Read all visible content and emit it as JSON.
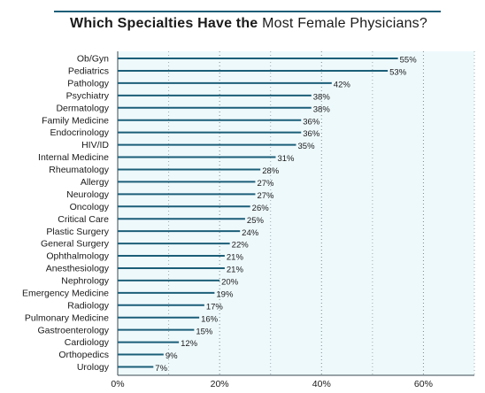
{
  "chart_data": {
    "type": "bar",
    "orientation": "horizontal",
    "title_bold": "Which Specialties Have the",
    "title_rest": "Most Female Physicians?",
    "categories": [
      "Ob/Gyn",
      "Pediatrics",
      "Pathology",
      "Psychiatry",
      "Dermatology",
      "Family Medicine",
      "Endocrinology",
      "HIV/ID",
      "Internal Medicine",
      "Rheumatology",
      "Allergy",
      "Neurology",
      "Oncology",
      "Critical Care",
      "Plastic Surgery",
      "General Surgery",
      "Ophthalmology",
      "Anesthesiology",
      "Nephrology",
      "Emergency Medicine",
      "Radiology",
      "Pulmonary Medicine",
      "Gastroenterology",
      "Cardiology",
      "Orthopedics",
      "Urology"
    ],
    "values": [
      55,
      53,
      42,
      38,
      38,
      36,
      36,
      35,
      31,
      28,
      27,
      27,
      26,
      25,
      24,
      22,
      21,
      21,
      20,
      19,
      17,
      16,
      15,
      12,
      9,
      7
    ],
    "value_labels": [
      "55%",
      "53%",
      "42%",
      "38%",
      "38%",
      "36%",
      "36%",
      "35%",
      "31%",
      "28%",
      "27%",
      "27%",
      "26%",
      "25%",
      "24%",
      "22%",
      "21%",
      "21%",
      "20%",
      "19%",
      "17%",
      "16%",
      "15%",
      "12%",
      "9%",
      "7%"
    ],
    "x_ticks": [
      0,
      20,
      40,
      60
    ],
    "x_tick_labels": [
      "0%",
      "20%",
      "40%",
      "60%"
    ],
    "xlim": [
      0,
      70
    ],
    "grid": true,
    "colors": {
      "bar": "#1b5e78",
      "plot_bg": "#eef9fc",
      "grid": "#7a8a90",
      "axis": "#3a4a50"
    }
  }
}
